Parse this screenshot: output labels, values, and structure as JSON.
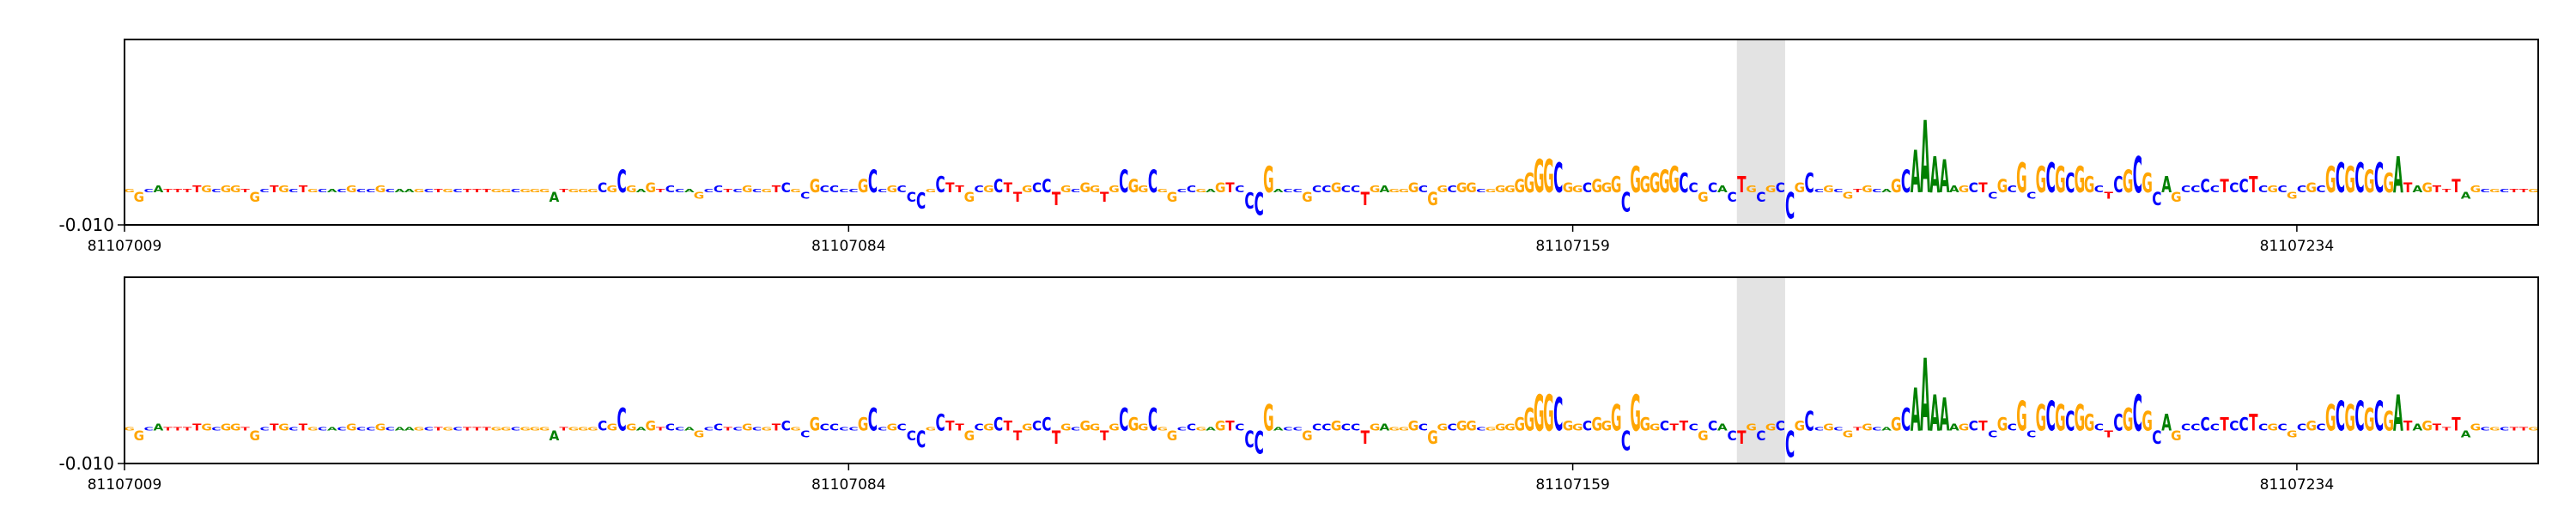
{
  "chart_data": [
    {
      "type": "logo",
      "sequence": "GGCATTTTGCGGTGCTGCTGCACGCCGCAAGCTGCTTTGGCGGGATGGGCGCGAGTCCAGCCTCGCGTCGCGCCCCGCCGCCCGCTTGCGCTTGCCTGCGGTGCGGCGGCCGAGTCCCGACCGCCGCCTGAGGGCGGCGGCGGGGGGGCGGCGGGCGGGGGCCGCACTGCGCCGCCGCGTGCAGCAAAAAGCTCGCGCGCGCGGCTCGCGCAGCCCCTCCTCGCGCGCGCGCGCGATAGTTTAGCGCTTG",
      "values": [
        0.001,
        -0.003,
        0.001,
        0.002,
        0.001,
        0.001,
        0.001,
        0.002,
        0.002,
        0.001,
        0.002,
        0.002,
        0.001,
        -0.003,
        0.001,
        0.002,
        0.002,
        0.001,
        0.002,
        0.001,
        0.001,
        0.001,
        0.001,
        0.002,
        0.001,
        0.001,
        0.002,
        0.001,
        0.001,
        0.001,
        0.001,
        0.001,
        0.001,
        0.001,
        0.001,
        0.001,
        0.001,
        0.001,
        0.001,
        0.001,
        0.001,
        0.001,
        0.001,
        0.001,
        -0.003,
        0.001,
        0.001,
        0.001,
        0.001,
        0.003,
        0.002,
        0.007,
        0.002,
        0.001,
        0.003,
        0.001,
        0.002,
        0.001,
        0.001,
        -0.002,
        0.001,
        0.002,
        0.001,
        0.001,
        0.002,
        0.001,
        0.001,
        0.002,
        0.003,
        0.001,
        -0.002,
        0.004,
        0.002,
        0.002,
        0.001,
        0.001,
        0.004,
        0.007,
        0.001,
        0.002,
        0.002,
        -0.003,
        -0.005,
        0.001,
        0.005,
        0.003,
        0.002,
        -0.003,
        0.002,
        0.002,
        0.004,
        0.003,
        -0.003,
        0.002,
        0.003,
        0.004,
        -0.004,
        0.002,
        0.001,
        0.003,
        0.002,
        -0.003,
        0.002,
        0.007,
        0.004,
        0.002,
        0.007,
        0.001,
        -0.003,
        0.001,
        0.002,
        0.001,
        0.001,
        0.003,
        0.003,
        0.002,
        -0.005,
        -0.007,
        0.008,
        0.001,
        0.001,
        0.001,
        -0.003,
        0.002,
        0.002,
        0.003,
        0.002,
        0.002,
        -0.004,
        0.002,
        0.002,
        0.001,
        0.001,
        0.003,
        0.002,
        -0.004,
        0.002,
        0.002,
        0.003,
        0.003,
        0.001,
        0.001,
        0.002,
        0.002,
        0.004,
        0.006,
        0.01,
        0.01,
        0.009,
        0.003,
        0.002,
        0.003,
        0.004,
        0.003,
        0.005,
        -0.006,
        0.008,
        0.005,
        0.006,
        0.007,
        0.008,
        0.006,
        0.003,
        -0.003,
        0.003,
        0.002,
        -0.003,
        0.005,
        0.002,
        -0.003,
        0.002,
        0.003,
        -0.008,
        0.003,
        0.006,
        0.001,
        0.002,
        0.001,
        -0.002,
        0.001,
        0.002,
        0.001,
        0.001,
        0.004,
        0.007,
        0.013,
        0.022,
        0.011,
        0.01,
        0.002,
        0.002,
        0.003,
        0.003,
        -0.002,
        0.004,
        0.002,
        0.009,
        -0.002,
        0.008,
        0.009,
        0.008,
        0.006,
        0.008,
        0.005,
        0.002,
        -0.002,
        0.005,
        0.007,
        0.011,
        0.006,
        -0.004,
        0.005,
        -0.003,
        0.002,
        0.002,
        0.004,
        0.002,
        0.004,
        0.003,
        0.004,
        0.005,
        0.002,
        0.002,
        0.002,
        -0.002,
        0.002,
        0.003,
        0.002,
        0.008,
        0.009,
        0.008,
        0.009,
        0.007,
        0.009,
        0.006,
        0.011,
        0.003,
        0.002,
        0.003,
        0.002,
        0.001,
        0.004,
        -0.002,
        0.002,
        0.001,
        0.001,
        0.001,
        0.001,
        0.001,
        0.001
      ],
      "colors": {
        "A": "#008000",
        "C": "#0000ff",
        "G": "#ffa500",
        "T": "#ff0000"
      },
      "xlim": [
        81107009,
        81107259
      ],
      "xticks": [
        81107009,
        81107084,
        81107159,
        81107234
      ],
      "ylim": [
        -0.01,
        0.0465
      ],
      "yticks": [
        {
          "value": -0.01,
          "label": "-0.010"
        }
      ],
      "highlight_x": [
        81107176,
        81107181
      ],
      "highlight_color": "#e3e3e3"
    },
    {
      "type": "logo",
      "sequence": "GGCATTTTGCGGTGCTGCTGCACGCCGCAAGCTGCTTTGGCGGGATGGGCGCGAGTCCAGCCTCGCGTCGCGCCCCGCCGCCCGCTTGCGCTTGCCTGCGGTGCGGCGGCCGAGTCCCGACCGCCGCCTGAGGGCGGCGGCGGGGGGGCGGCGGGCGGGCTTCGCACTGCGCCGCCGCGTGCAGCAAAAAGCTCGCGCGCGCGGCTCGCGCAGCCCCTCCTCGCGCGCGCGCGCGATAGTTTAGCGCTTG",
      "values": [
        0.001,
        -0.003,
        0.001,
        0.002,
        0.001,
        0.001,
        0.001,
        0.002,
        0.002,
        0.001,
        0.002,
        0.002,
        0.001,
        -0.003,
        0.001,
        0.002,
        0.002,
        0.001,
        0.002,
        0.001,
        0.001,
        0.001,
        0.001,
        0.002,
        0.001,
        0.001,
        0.002,
        0.001,
        0.001,
        0.001,
        0.001,
        0.001,
        0.001,
        0.001,
        0.001,
        0.001,
        0.001,
        0.001,
        0.001,
        0.001,
        0.001,
        0.001,
        0.001,
        0.001,
        -0.003,
        0.001,
        0.001,
        0.001,
        0.001,
        0.003,
        0.002,
        0.007,
        0.002,
        0.001,
        0.003,
        0.001,
        0.002,
        0.001,
        0.001,
        -0.002,
        0.001,
        0.002,
        0.001,
        0.001,
        0.002,
        0.001,
        0.001,
        0.002,
        0.003,
        0.001,
        -0.002,
        0.004,
        0.002,
        0.002,
        0.001,
        0.001,
        0.004,
        0.007,
        0.001,
        0.002,
        0.002,
        -0.003,
        -0.005,
        0.001,
        0.005,
        0.003,
        0.002,
        -0.003,
        0.002,
        0.002,
        0.004,
        0.003,
        -0.003,
        0.002,
        0.003,
        0.004,
        -0.004,
        0.002,
        0.001,
        0.003,
        0.002,
        -0.003,
        0.002,
        0.007,
        0.004,
        0.002,
        0.007,
        0.001,
        -0.003,
        0.001,
        0.002,
        0.001,
        0.001,
        0.003,
        0.003,
        0.002,
        -0.005,
        -0.007,
        0.008,
        0.001,
        0.001,
        0.001,
        -0.003,
        0.002,
        0.002,
        0.003,
        0.002,
        0.002,
        -0.004,
        0.002,
        0.002,
        0.001,
        0.001,
        0.003,
        0.002,
        -0.004,
        0.002,
        0.002,
        0.003,
        0.003,
        0.001,
        0.001,
        0.002,
        0.002,
        0.004,
        0.007,
        0.011,
        0.011,
        0.01,
        0.003,
        0.002,
        0.003,
        0.004,
        0.003,
        0.008,
        -0.006,
        0.011,
        0.004,
        0.002,
        0.003,
        0.002,
        0.003,
        0.002,
        -0.003,
        0.003,
        0.002,
        -0.003,
        -0.004,
        0.002,
        -0.003,
        0.002,
        0.003,
        -0.008,
        0.003,
        0.006,
        0.001,
        0.002,
        0.001,
        -0.002,
        0.001,
        0.002,
        0.001,
        0.001,
        0.004,
        0.007,
        0.013,
        0.022,
        0.011,
        0.01,
        0.002,
        0.002,
        0.003,
        0.003,
        -0.002,
        0.004,
        0.002,
        0.009,
        -0.002,
        0.008,
        0.009,
        0.008,
        0.006,
        0.008,
        0.005,
        0.002,
        -0.002,
        0.005,
        0.007,
        0.011,
        0.006,
        -0.004,
        0.005,
        -0.003,
        0.002,
        0.002,
        0.004,
        0.002,
        0.004,
        0.003,
        0.004,
        0.005,
        0.002,
        0.002,
        0.002,
        -0.002,
        0.002,
        0.003,
        0.002,
        0.008,
        0.009,
        0.008,
        0.009,
        0.007,
        0.009,
        0.006,
        0.011,
        0.003,
        0.002,
        0.003,
        0.002,
        0.001,
        0.004,
        -0.002,
        0.002,
        0.001,
        0.001,
        0.001,
        0.001,
        0.001,
        0.001
      ],
      "colors": {
        "A": "#008000",
        "C": "#0000ff",
        "G": "#ffa500",
        "T": "#ff0000"
      },
      "xlim": [
        81107009,
        81107259
      ],
      "xticks": [
        81107009,
        81107084,
        81107159,
        81107234
      ],
      "ylim": [
        -0.01,
        0.0465
      ],
      "yticks": [
        {
          "value": -0.01,
          "label": "-0.010"
        }
      ],
      "highlight_x": [
        81107176,
        81107181
      ],
      "highlight_color": "#e3e3e3"
    }
  ]
}
